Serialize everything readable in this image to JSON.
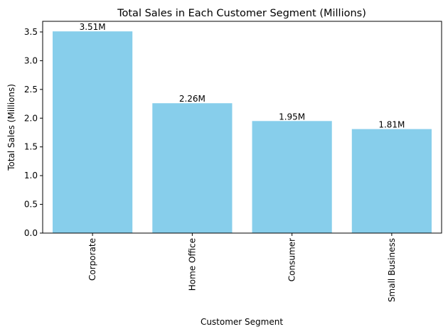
{
  "chart_data": {
    "type": "bar",
    "title": "Total Sales in Each Customer Segment (Millions)",
    "xlabel": "Customer Segment",
    "ylabel": "Total Sales (Millions)",
    "categories": [
      "Corporate",
      "Home Office",
      "Consumer",
      "Small Business"
    ],
    "values": [
      3.51,
      2.26,
      1.95,
      1.81
    ],
    "data_labels": [
      "3.51M",
      "2.26M",
      "1.95M",
      "1.81M"
    ],
    "ylim": [
      0,
      3.685
    ],
    "yticks": [
      0.0,
      0.5,
      1.0,
      1.5,
      2.0,
      2.5,
      3.0,
      3.5
    ],
    "ytick_labels": [
      "0.0",
      "0.5",
      "1.0",
      "1.5",
      "2.0",
      "2.5",
      "3.0",
      "3.5"
    ],
    "bar_color": "#87ceeb",
    "grid": false,
    "legend": "none"
  }
}
